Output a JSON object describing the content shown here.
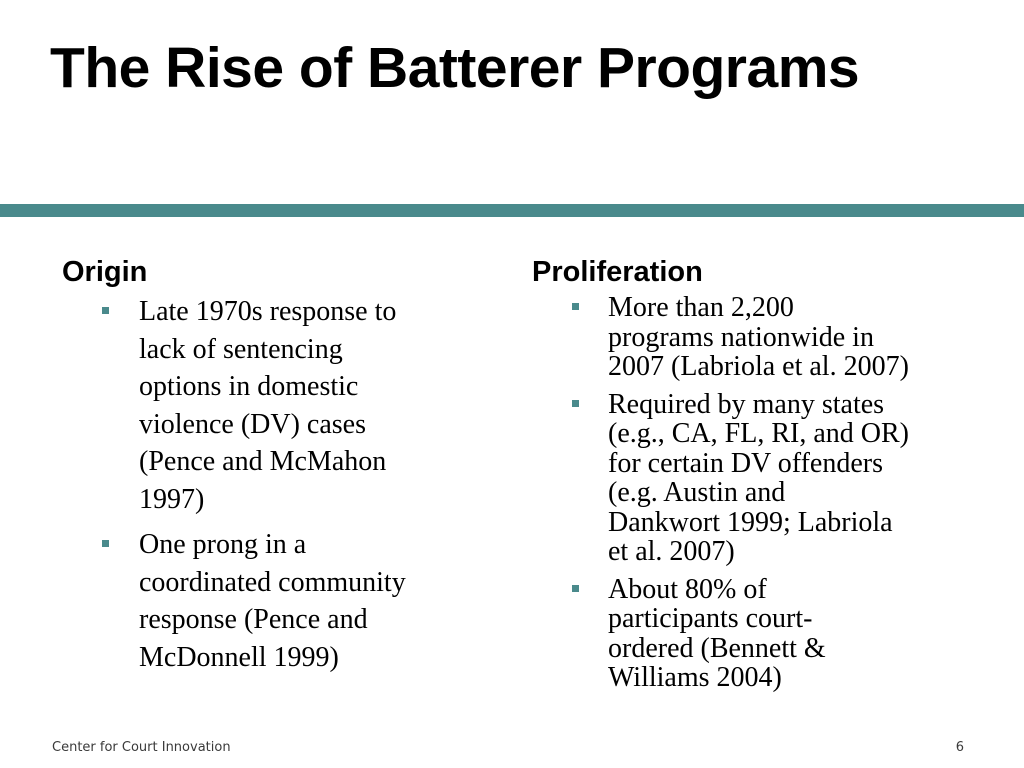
{
  "slide": {
    "title": "The Rise of Batterer Programs",
    "accent_color": "#4a8a8c",
    "left_column": {
      "heading": "Origin",
      "bullets": [
        {
          "lines": [
            "Late 1970s response to",
            "lack of sentencing",
            "options in domestic",
            "violence (DV) cases",
            "(Pence and McMahon",
            "1997)"
          ]
        },
        {
          "lines": [
            "One prong in a",
            "coordinated community",
            "response (Pence and",
            "McDonnell 1999)"
          ]
        }
      ]
    },
    "right_column": {
      "heading": "Proliferation",
      "bullets": [
        {
          "lines": [
            "More than 2,200",
            "programs nationwide in",
            "2007 (Labriola et al. 2007)"
          ]
        },
        {
          "lines": [
            "Required by many states",
            "(e.g., CA, FL, RI, and OR)",
            "for certain DV offenders",
            "(e.g. Austin and",
            "Dankwort 1999; Labriola",
            "et al. 2007)"
          ]
        },
        {
          "lines": [
            "About 80% of",
            "participants court-",
            "ordered (Bennett &",
            "Williams 2004)"
          ]
        }
      ]
    }
  },
  "footer": {
    "organization": "Center for Court Innovation",
    "page_number": "6"
  }
}
